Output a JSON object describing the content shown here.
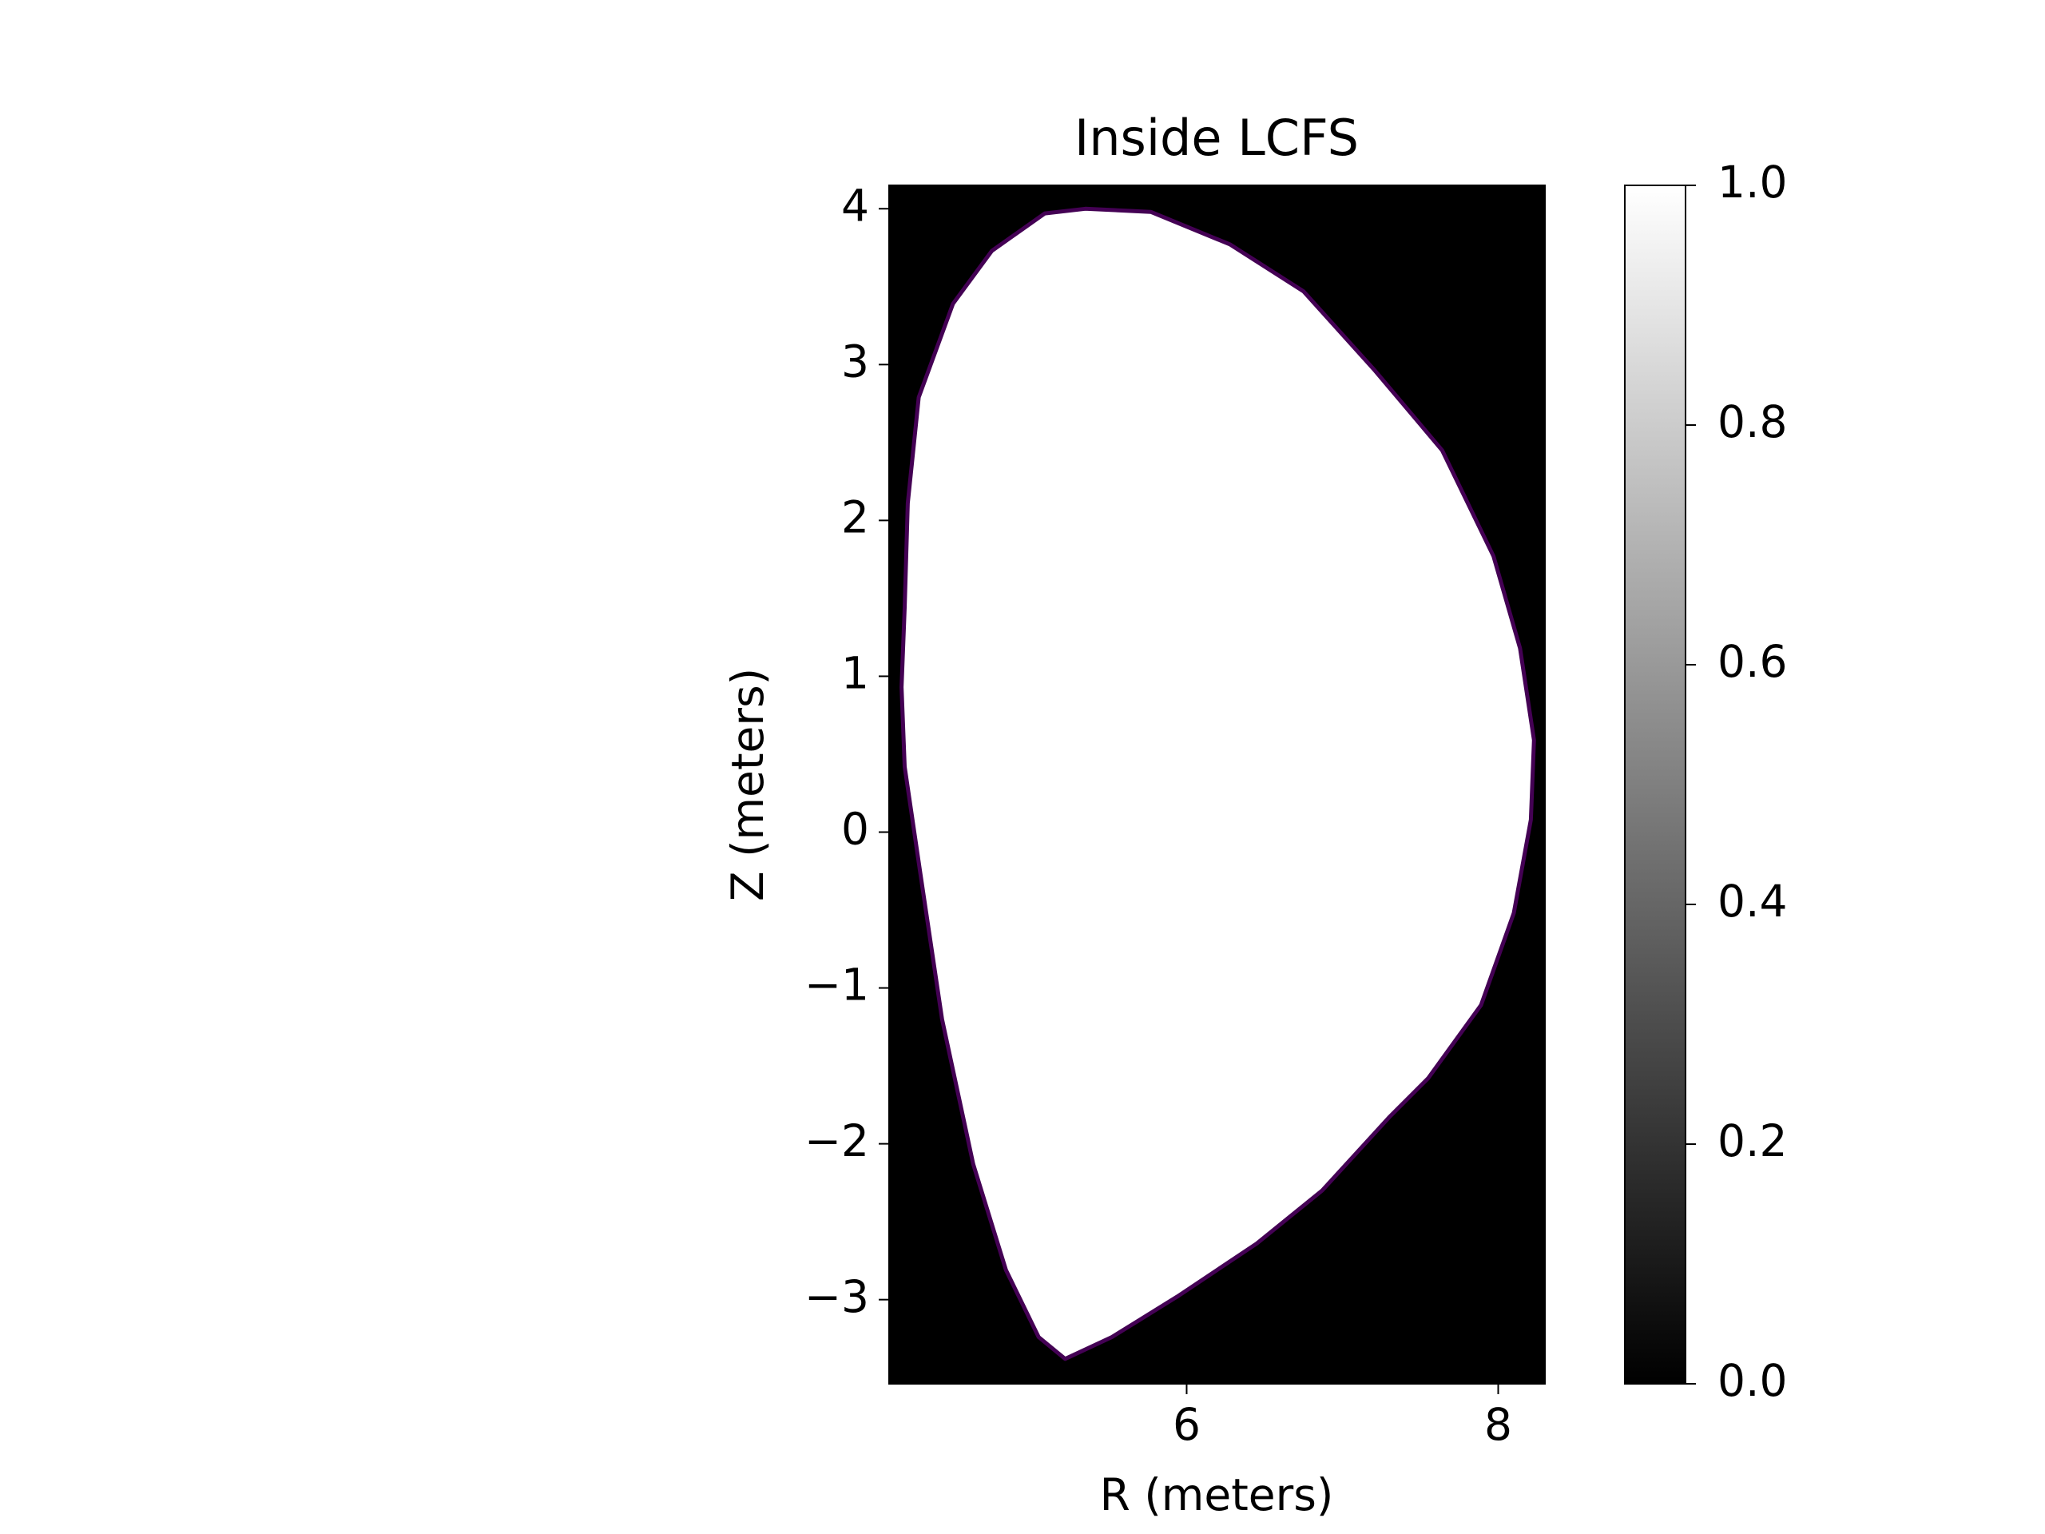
{
  "chart_data": {
    "type": "contour-mask",
    "title": "Inside LCFS",
    "xlabel": "R (meters)",
    "ylabel": "Z (meters)",
    "xlim": [
      4.09,
      8.3
    ],
    "ylim": [
      -3.54,
      4.15
    ],
    "xticks": [
      6,
      8
    ],
    "yticks": [
      {
        "value": -3,
        "label": "−3"
      },
      {
        "value": -2,
        "label": "−2"
      },
      {
        "value": -1,
        "label": "−1"
      },
      0,
      1,
      2,
      3,
      4
    ],
    "colormap": "gray",
    "contour_color": "#440154",
    "clim": [
      0,
      1
    ],
    "cticks": [
      {
        "value": 0,
        "label": "0.0"
      },
      0.2,
      0.4,
      0.6,
      0.8,
      {
        "value": 1,
        "label": "1.0"
      }
    ],
    "boundary": {
      "r": [
        4.19,
        4.17,
        4.19,
        4.21,
        4.28,
        4.5,
        4.75,
        5.09,
        5.35,
        5.77,
        6.28,
        6.75,
        7.21,
        7.64,
        7.97,
        8.14,
        8.23,
        8.21,
        8.1,
        7.89,
        7.55,
        7.3,
        6.87,
        6.45,
        5.94,
        5.52,
        5.22,
        5.05,
        4.84,
        4.63,
        4.43,
        4.29
      ],
      "z": [
        0.42,
        0.93,
        1.44,
        2.11,
        2.79,
        3.39,
        3.73,
        3.97,
        4.0,
        3.98,
        3.77,
        3.47,
        2.96,
        2.45,
        1.77,
        1.18,
        0.59,
        0.08,
        -0.52,
        -1.11,
        -1.58,
        -1.83,
        -2.3,
        -2.64,
        -2.98,
        -3.24,
        -3.38,
        -3.24,
        -2.81,
        -2.13,
        -1.2,
        -0.26
      ]
    }
  }
}
